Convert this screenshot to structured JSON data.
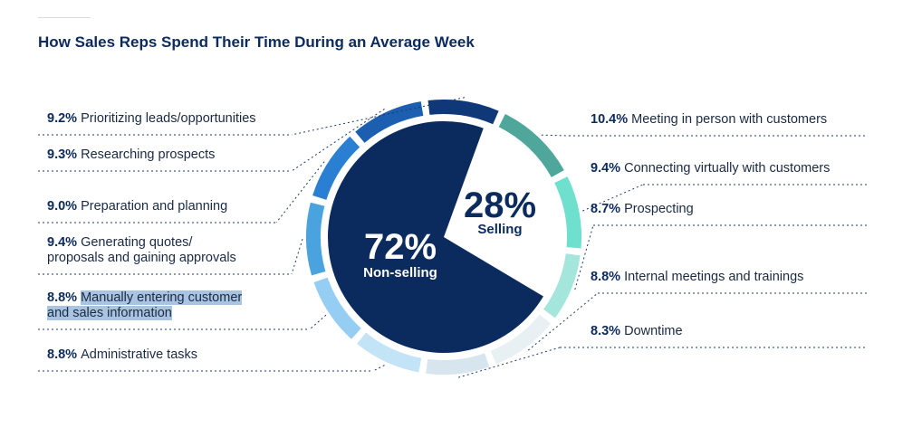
{
  "title": "How Sales Reps Spend Their Time During an Average Week",
  "chart_data": {
    "type": "pie",
    "title": "How Sales Reps Spend Their Time During an Average Week",
    "inner_pie": [
      {
        "label": "Non-selling",
        "pct_label": "72%",
        "value": 72,
        "color": "#0b2a5e"
      },
      {
        "label": "Selling",
        "pct_label": "28%",
        "value": 28,
        "color": "#ffffff"
      }
    ],
    "outer_ring": [
      {
        "group": "Selling",
        "label": "Meeting in person with customers",
        "pct_label": "10.4%",
        "value": 10.4,
        "color": "#4fa79b"
      },
      {
        "group": "Selling",
        "label": "Connecting virtually with customers",
        "pct_label": "9.4%",
        "value": 9.4,
        "color": "#6ee0cd"
      },
      {
        "group": "Selling",
        "label": "Prospecting",
        "pct_label": "8.7%",
        "value": 8.7,
        "color": "#a5e6dc"
      },
      {
        "group": "Non-selling",
        "label": "Internal meetings and trainings",
        "pct_label": "8.8%",
        "value": 8.8,
        "color": "#e9f0f4"
      },
      {
        "group": "Non-selling",
        "label": "Downtime",
        "pct_label": "8.3%",
        "value": 8.3,
        "color": "#d6e5ee"
      },
      {
        "group": "Non-selling",
        "label": "Administrative tasks",
        "pct_label": "8.8%",
        "value": 8.8,
        "color": "#c3e3f7"
      },
      {
        "group": "Non-selling",
        "label": "Manually entering customer and sales information",
        "pct_label": "8.8%",
        "value": 8.8,
        "color": "#96cdf3"
      },
      {
        "group": "Non-selling",
        "label": "Generating quotes/ proposals and gaining approvals",
        "pct_label": "9.4%",
        "value": 9.4,
        "color": "#4aa2de"
      },
      {
        "group": "Non-selling",
        "label": "Preparation and planning",
        "pct_label": "9.0%",
        "value": 9.0,
        "color": "#2a7fd2"
      },
      {
        "group": "Non-selling",
        "label": "Researching prospects",
        "pct_label": "9.3%",
        "value": 9.3,
        "color": "#1c5eb0"
      },
      {
        "group": "Non-selling",
        "label": "Prioritizing leads/opportunities",
        "pct_label": "9.2%",
        "value": 9.2,
        "color": "#0e3877"
      }
    ]
  },
  "labels": {
    "left": [
      {
        "pct": "9.2%",
        "lines": [
          "Prioritizing leads/opportunities"
        ]
      },
      {
        "pct": "9.3%",
        "lines": [
          "Researching prospects"
        ]
      },
      {
        "pct": "9.0%",
        "lines": [
          "Preparation and planning"
        ]
      },
      {
        "pct": "9.4%",
        "lines": [
          "Generating quotes/",
          "proposals and gaining approvals"
        ]
      },
      {
        "pct": "8.8%",
        "lines": [
          "Manually entering customer",
          "and sales information"
        ],
        "highlight": true
      },
      {
        "pct": "8.8%",
        "lines": [
          "Administrative tasks"
        ]
      }
    ],
    "right": [
      {
        "pct": "10.4%",
        "lines": [
          "Meeting in person with customers"
        ]
      },
      {
        "pct": "9.4%",
        "lines": [
          "Connecting virtually with customers"
        ]
      },
      {
        "pct": "8.7%",
        "lines": [
          "Prospecting"
        ]
      },
      {
        "pct": "8.8%",
        "lines": [
          "Internal meetings and trainings"
        ]
      },
      {
        "pct": "8.3%",
        "lines": [
          "Downtime"
        ]
      }
    ]
  }
}
